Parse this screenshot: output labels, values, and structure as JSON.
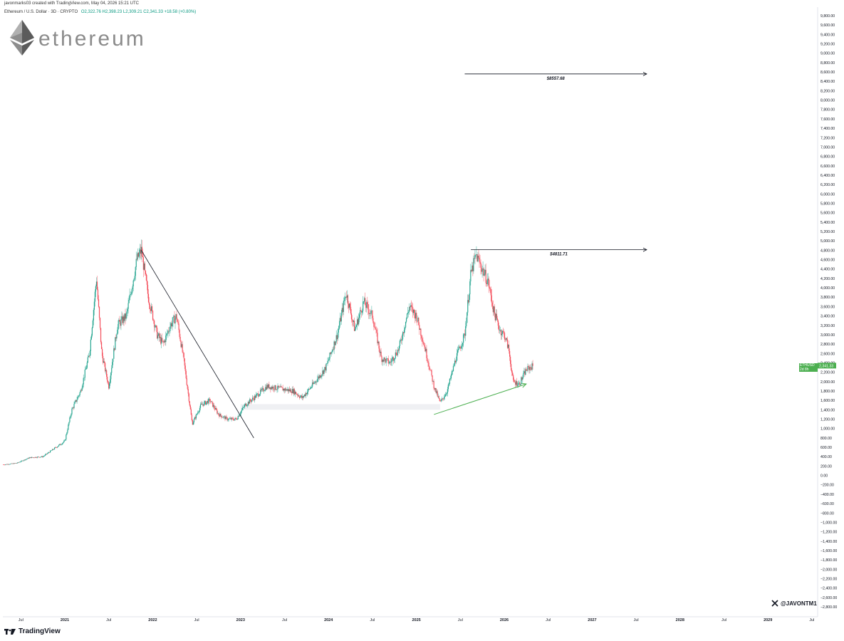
{
  "header": {
    "creator_line": "javonmarks03 created with TradingView.com, May 04, 2026 15:21 UTC",
    "symbol_line": "Ethereum / U.S. Dollar · 3D · CRYPTO",
    "ohlc": "O2,322.76  H2,398.23  L2,309.21  C2,341.33  +18.58 (+0.80%)"
  },
  "logo": {
    "word": "ethereum"
  },
  "watermark": {
    "handle": "@JAVONTM1"
  },
  "footer": {
    "brand": "TradingView"
  },
  "price_tag": {
    "symbol": "ETHUSD",
    "value": "2,341.33",
    "countdown": "2d 8h"
  },
  "colors": {
    "up": "#089981",
    "down": "#f23645",
    "green_arrow": "#4caf50",
    "line": "#131722"
  },
  "chart_data": {
    "type": "candlestick",
    "ylim": [
      -2800,
      9900
    ],
    "y_ticks": [
      "9,800.00",
      "9,600.00",
      "9,400.00",
      "9,200.00",
      "9,000.00",
      "8,800.00",
      "8,600.00",
      "8,400.00",
      "8,200.00",
      "8,000.00",
      "7,800.00",
      "7,600.00",
      "7,400.00",
      "7,200.00",
      "7,000.00",
      "6,800.00",
      "6,600.00",
      "6,400.00",
      "6,200.00",
      "6,000.00",
      "5,800.00",
      "5,600.00",
      "5,400.00",
      "5,200.00",
      "5,000.00",
      "4,800.00",
      "4,600.00",
      "4,400.00",
      "4,200.00",
      "4,000.00",
      "3,800.00",
      "3,600.00",
      "3,400.00",
      "3,200.00",
      "3,000.00",
      "2,800.00",
      "2,600.00",
      "2,400.00",
      "2,200.00",
      "2,000.00",
      "1,800.00",
      "1,600.00",
      "1,400.00",
      "1,200.00",
      "1,000.00",
      "800.00",
      "600.00",
      "400.00",
      "200.00",
      "0.00",
      "−200.00",
      "−400.00",
      "−600.00",
      "−800.00",
      "−1,000.00",
      "−1,200.00",
      "−1,400.00",
      "−1,600.00",
      "−1,800.00",
      "−2,000.00",
      "−2,200.00",
      "−2,400.00",
      "−2,600.00",
      "−2,800.00"
    ],
    "x_ticks": [
      {
        "label": "Jul",
        "t": 2020.5
      },
      {
        "label": "2021",
        "t": 2021.0
      },
      {
        "label": "Jul",
        "t": 2021.5
      },
      {
        "label": "2022",
        "t": 2022.0
      },
      {
        "label": "Jul",
        "t": 2022.5
      },
      {
        "label": "2023",
        "t": 2023.0
      },
      {
        "label": "Jul",
        "t": 2023.5
      },
      {
        "label": "2024",
        "t": 2024.0
      },
      {
        "label": "Jul",
        "t": 2024.5
      },
      {
        "label": "2025",
        "t": 2025.0
      },
      {
        "label": "Jul",
        "t": 2025.5
      },
      {
        "label": "2026",
        "t": 2026.0
      },
      {
        "label": "Jul",
        "t": 2026.5
      },
      {
        "label": "2027",
        "t": 2027.0
      },
      {
        "label": "Jul",
        "t": 2027.5
      },
      {
        "label": "2028",
        "t": 2028.0
      },
      {
        "label": "Jul",
        "t": 2028.5
      },
      {
        "label": "2029",
        "t": 2029.0
      },
      {
        "label": "Jul",
        "t": 2029.5
      }
    ],
    "bold_x_ticks": [
      "2021",
      "2022",
      "2023",
      "2024",
      "2025",
      "2026",
      "2027",
      "2028",
      "2029"
    ],
    "price_path": [
      [
        2020.3,
        230
      ],
      [
        2020.45,
        260
      ],
      [
        2020.6,
        380
      ],
      [
        2020.75,
        400
      ],
      [
        2020.9,
        600
      ],
      [
        2021.0,
        730
      ],
      [
        2021.08,
        1400
      ],
      [
        2021.18,
        1800
      ],
      [
        2021.28,
        2600
      ],
      [
        2021.36,
        4200
      ],
      [
        2021.42,
        2600
      ],
      [
        2021.5,
        1900
      ],
      [
        2021.6,
        3200
      ],
      [
        2021.7,
        3400
      ],
      [
        2021.82,
        4600
      ],
      [
        2021.87,
        4800
      ],
      [
        2021.95,
        3800
      ],
      [
        2022.05,
        3000
      ],
      [
        2022.12,
        2800
      ],
      [
        2022.2,
        3200
      ],
      [
        2022.27,
        3400
      ],
      [
        2022.35,
        2500
      ],
      [
        2022.45,
        1100
      ],
      [
        2022.55,
        1500
      ],
      [
        2022.65,
        1600
      ],
      [
        2022.75,
        1300
      ],
      [
        2022.85,
        1200
      ],
      [
        2022.95,
        1200
      ],
      [
        2023.05,
        1500
      ],
      [
        2023.15,
        1650
      ],
      [
        2023.3,
        1900
      ],
      [
        2023.45,
        1850
      ],
      [
        2023.6,
        1800
      ],
      [
        2023.7,
        1650
      ],
      [
        2023.85,
        2000
      ],
      [
        2023.97,
        2300
      ],
      [
        2024.1,
        3000
      ],
      [
        2024.2,
        3900
      ],
      [
        2024.3,
        3100
      ],
      [
        2024.4,
        3700
      ],
      [
        2024.5,
        3400
      ],
      [
        2024.6,
        2500
      ],
      [
        2024.7,
        2400
      ],
      [
        2024.8,
        2700
      ],
      [
        2024.92,
        3600
      ],
      [
        2025.0,
        3400
      ],
      [
        2025.1,
        2700
      ],
      [
        2025.2,
        1900
      ],
      [
        2025.27,
        1550
      ],
      [
        2025.35,
        1800
      ],
      [
        2025.45,
        2500
      ],
      [
        2025.55,
        3000
      ],
      [
        2025.62,
        4300
      ],
      [
        2025.68,
        4700
      ],
      [
        2025.75,
        4400
      ],
      [
        2025.82,
        4100
      ],
      [
        2025.88,
        3500
      ],
      [
        2025.95,
        3100
      ],
      [
        2026.0,
        3000
      ],
      [
        2026.05,
        2700
      ],
      [
        2026.1,
        2000
      ],
      [
        2026.17,
        1950
      ],
      [
        2026.25,
        2250
      ],
      [
        2026.33,
        2341
      ]
    ],
    "annotations": [
      {
        "type": "horizontal_ray",
        "label": "$8557.68",
        "y": 8557.68,
        "t_start": 2025.55
      },
      {
        "type": "horizontal_ray",
        "label": "$4811.71",
        "y": 4811.71,
        "t_start": 2025.62
      },
      {
        "type": "trendline",
        "t0": 2021.87,
        "y0": 4800,
        "t1": 2023.15,
        "y1": 800
      },
      {
        "type": "support_zone",
        "t0": 2023.0,
        "t1": 2025.27,
        "y_low": 1400,
        "y_high": 1520
      },
      {
        "type": "arrow",
        "color": "green",
        "t0": 2025.2,
        "y0": 1300,
        "t1": 2026.25,
        "y1": 1950
      }
    ]
  }
}
